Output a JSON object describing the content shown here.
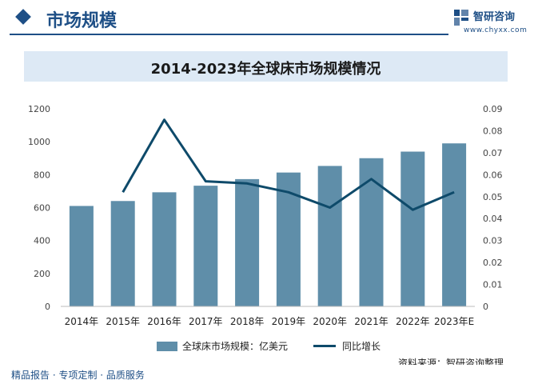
{
  "header": {
    "section_title": "市场规模",
    "logo_name": "智研咨询",
    "logo_url": "www.chyxx.com"
  },
  "footer": {
    "tagline": "精品报告 · 专项定制 · 品质服务",
    "source": "资料来源：智研咨询整理"
  },
  "colors": {
    "bar": "#5f8ea9",
    "line": "#0e4a6a",
    "brand": "#1e4f86"
  },
  "chart_data": {
    "type": "bar",
    "title": "2014-2023年全球床市场规模情况",
    "categories": [
      "2014年",
      "2015年",
      "2016年",
      "2017年",
      "2018年",
      "2019年",
      "2020年",
      "2021年",
      "2022年",
      "2023年E"
    ],
    "series": [
      {
        "name": "全球床市场规模：亿美元",
        "type": "bar",
        "axis": "left",
        "values": [
          610,
          640,
          693,
          733,
          773,
          813,
          853,
          900,
          940,
          990
        ]
      },
      {
        "name": "同比增长",
        "type": "line",
        "axis": "right",
        "values": [
          null,
          0.052,
          0.085,
          0.057,
          0.056,
          0.052,
          0.045,
          0.058,
          0.044,
          0.052
        ]
      }
    ],
    "y_left": {
      "min": 0,
      "max": 1200,
      "ticks": [
        0,
        200,
        400,
        600,
        800,
        1000,
        1200
      ]
    },
    "y_right": {
      "min": 0,
      "max": 0.09,
      "ticks": [
        "0",
        "0.01",
        "0.02",
        "0.03",
        "0.04",
        "0.05",
        "0.06",
        "0.07",
        "0.08",
        "0.09"
      ]
    },
    "legend_position": "bottom",
    "grid": false
  }
}
